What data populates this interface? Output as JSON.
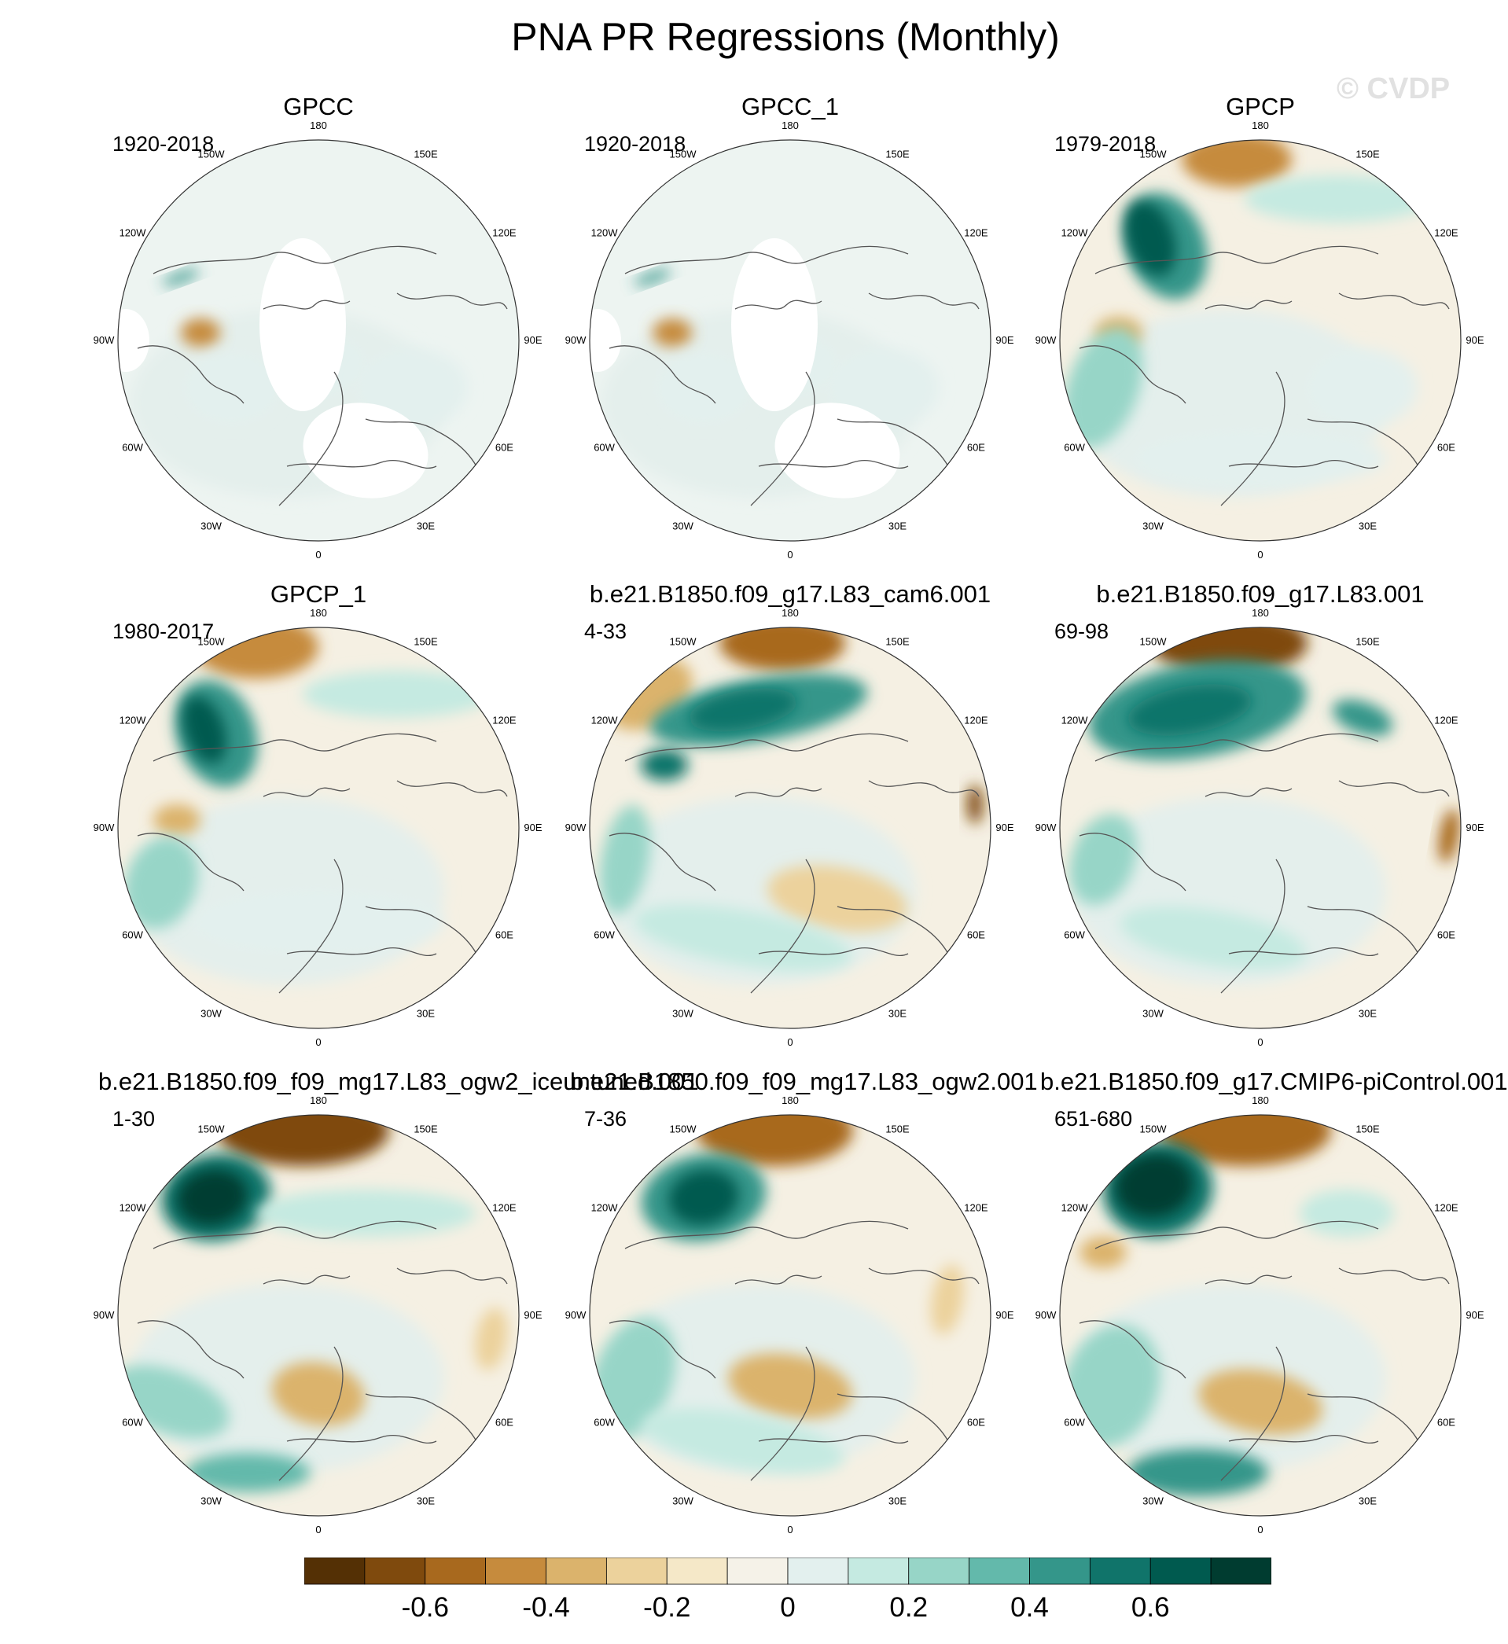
{
  "title": "PNA PR Regressions (Monthly)",
  "copyright": "© CVDP",
  "longitude_labels": [
    "180",
    "150E",
    "120E",
    "90E",
    "60E",
    "30E",
    "0",
    "30W",
    "60W",
    "90W",
    "120W",
    "150W"
  ],
  "panels": [
    {
      "title": "GPCC",
      "years": "1920-2018"
    },
    {
      "title": "GPCC_1",
      "years": "1920-2018"
    },
    {
      "title": "GPCP",
      "years": "1979-2018"
    },
    {
      "title": "GPCP_1",
      "years": "1980-2017"
    },
    {
      "title": "b.e21.B1850.f09_g17.L83_cam6.001",
      "years": "4-33"
    },
    {
      "title": "b.e21.B1850.f09_g17.L83.001",
      "years": "69-98"
    },
    {
      "title": "b.e21.B1850.f09_f09_mg17.L83_ogw2_iceuntuned.001",
      "years": "1-30"
    },
    {
      "title": "b.e21.B1850.f09_f09_mg17.L83_ogw2.001",
      "years": "7-36"
    },
    {
      "title": "b.e21.B1850.f09_g17.CMIP6-piControl.001",
      "years": "651-680"
    }
  ],
  "colorbar": {
    "labels": [
      "-0.6",
      "-0.4",
      "-0.2",
      "0",
      "0.2",
      "0.4",
      "0.6"
    ],
    "colors": [
      "#543005",
      "#7f4a0d",
      "#a8691e",
      "#c68b3d",
      "#dbb36c",
      "#ecd29c",
      "#f5e8c8",
      "#f5f2e8",
      "#e3f0ee",
      "#c5eae1",
      "#97d5c7",
      "#63b9ab",
      "#34968a",
      "#10746a",
      "#005a4f",
      "#003c30"
    ]
  },
  "chart_data": {
    "type": "map",
    "title": "PNA PR Regressions (Monthly)",
    "projection": "north polar stereographic",
    "variable": "PR regression",
    "color_scale": {
      "min": -0.8,
      "max": 0.8,
      "interval": 0.1,
      "tick_labels": [
        "-0.6",
        "-0.4",
        "-0.2",
        "0",
        "0.2",
        "0.4",
        "0.6"
      ]
    },
    "panels": [
      {
        "name": "GPCC",
        "period": "1920-2018"
      },
      {
        "name": "GPCC_1",
        "period": "1920-2018"
      },
      {
        "name": "GPCP",
        "period": "1979-2018"
      },
      {
        "name": "GPCP_1",
        "period": "1980-2017"
      },
      {
        "name": "b.e21.B1850.f09_g17.L83_cam6.001",
        "period": "4-33"
      },
      {
        "name": "b.e21.B1850.f09_g17.L83.001",
        "period": "69-98"
      },
      {
        "name": "b.e21.B1850.f09_f09_mg17.L83_ogw2_iceuntuned.001",
        "period": "1-30"
      },
      {
        "name": "b.e21.B1850.f09_f09_mg17.L83_ogw2.001",
        "period": "7-36"
      },
      {
        "name": "b.e21.B1850.f09_g17.CMIP6-piControl.001",
        "period": "651-680"
      }
    ]
  }
}
